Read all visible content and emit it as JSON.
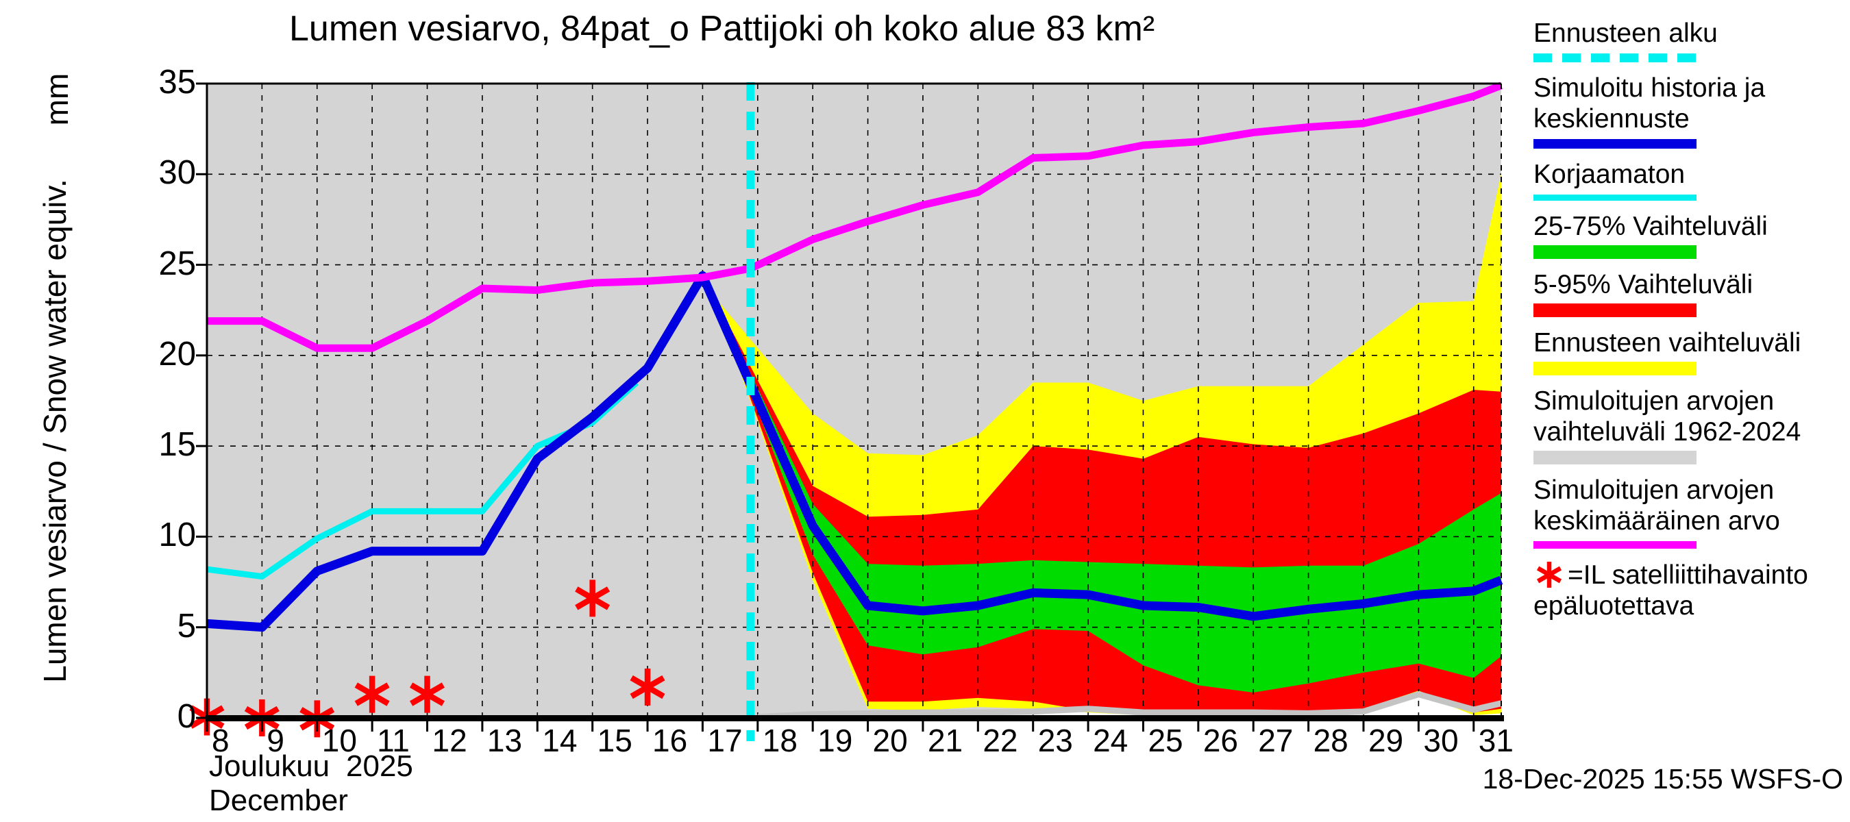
{
  "header": {
    "title": "Lumen vesiarvo, 84pat_o Pattijoki oh koko alue 83 km²"
  },
  "y_axis": {
    "name": "Lumen vesiarvo / Snow water equiv.",
    "unit": "mm",
    "tick_labels": [
      "0",
      "5",
      "10",
      "15",
      "20",
      "25",
      "30",
      "35"
    ]
  },
  "x_axis": {
    "month_fi": "Joulukuu",
    "year": "2025",
    "month_en": "December",
    "day_tick_labels": [
      "8",
      "9",
      "10",
      "11",
      "12",
      "13",
      "14",
      "15",
      "16",
      "17",
      "18",
      "19",
      "20",
      "21",
      "22",
      "23",
      "24",
      "25",
      "26",
      "27",
      "28",
      "29",
      "30",
      "31"
    ]
  },
  "footer": {
    "timestamp": "18-Dec-2025 15:55 WSFS-O"
  },
  "colors": {
    "median_blue": "#0000e0",
    "uncorrected_cyan": "#00efef",
    "mean_magenta": "#ff00ff",
    "band_green": "#00db00",
    "band_red": "#ff0000",
    "band_yellow": "#ffff00",
    "band_gray": "#d4d4d4",
    "gray_edge": "#c4c4c4",
    "obs_red": "#ff0000",
    "forecast_start_cyan": "#00efef",
    "axis_black": "#000000"
  },
  "legend": {
    "items": [
      {
        "key": "forecast-start",
        "lines": [
          "Ennusteen alku"
        ],
        "swatch": "dashed",
        "color": "#00efef"
      },
      {
        "key": "simulated-history-median",
        "lines": [
          "Simuloitu historia ja",
          "keskiennuste"
        ],
        "swatch": "thick-line",
        "color": "#0000e0"
      },
      {
        "key": "uncorrected",
        "lines": [
          "Korjaamaton"
        ],
        "swatch": "line",
        "color": "#00efef"
      },
      {
        "key": "range-25-75",
        "lines": [
          "25-75% Vaihteluväli"
        ],
        "swatch": "band",
        "color": "#00db00"
      },
      {
        "key": "range-5-95",
        "lines": [
          "5-95% Vaihteluväli"
        ],
        "swatch": "band",
        "color": "#ff0000"
      },
      {
        "key": "forecast-range",
        "lines": [
          "Ennusteen vaihteluväli"
        ],
        "swatch": "band",
        "color": "#ffff00"
      },
      {
        "key": "simulated-range-1962-2024",
        "lines": [
          "Simuloitujen arvojen",
          "vaihteluväli 1962-2024"
        ],
        "swatch": "band",
        "color": "#d4d4d4"
      },
      {
        "key": "simulated-mean",
        "lines": [
          "Simuloitujen arvojen",
          "keskimääräinen arvo"
        ],
        "swatch": "mline",
        "color": "#ff00ff"
      },
      {
        "key": "satellite-note",
        "lines": [
          "=IL satelliittihavainto",
          "epäluotettava"
        ],
        "swatch": "asterisk",
        "color": "#ff0000"
      }
    ]
  },
  "chart_data": {
    "type": "area",
    "title": "Lumen vesiarvo, 84pat_o Pattijoki oh koko alue 83 km²",
    "xlabel": "Joulukuu 2025 / December",
    "ylabel": "Lumen vesiarvo / Snow water equiv. (mm)",
    "xlim": [
      8,
      31.5
    ],
    "ylim": [
      0,
      35
    ],
    "grid": true,
    "legend_position": "right",
    "forecast_start_x": 17.87,
    "x_ticks": [
      8,
      9,
      10,
      11,
      12,
      13,
      14,
      15,
      16,
      17,
      18,
      19,
      20,
      21,
      22,
      23,
      24,
      25,
      26,
      27,
      28,
      29,
      30,
      31
    ],
    "y_ticks": [
      0,
      5,
      10,
      15,
      20,
      25,
      30,
      35
    ],
    "series": [
      {
        "name": "simulated_history_and_median_forecast",
        "color": "#0000e0",
        "width": 13,
        "points": [
          [
            8,
            5.2
          ],
          [
            9,
            5.0
          ],
          [
            10,
            8.1
          ],
          [
            11,
            9.2
          ],
          [
            12,
            9.2
          ],
          [
            13,
            9.2
          ],
          [
            14,
            14.3
          ],
          [
            15,
            16.6
          ],
          [
            16,
            19.3
          ],
          [
            17,
            24.4
          ],
          [
            17.87,
            18.4
          ],
          [
            19,
            10.6
          ],
          [
            20,
            6.2
          ],
          [
            21,
            5.9
          ],
          [
            22,
            6.2
          ],
          [
            23,
            6.9
          ],
          [
            24,
            6.8
          ],
          [
            25,
            6.2
          ],
          [
            26,
            6.1
          ],
          [
            27,
            5.6
          ],
          [
            28,
            6.0
          ],
          [
            29,
            6.3
          ],
          [
            30,
            6.8
          ],
          [
            31,
            7.0
          ],
          [
            31.5,
            7.6
          ]
        ]
      },
      {
        "name": "uncorrected_simulation",
        "color": "#00efef",
        "width": 9,
        "points": [
          [
            8,
            8.2
          ],
          [
            9,
            7.8
          ],
          [
            10,
            9.9
          ],
          [
            11,
            11.4
          ],
          [
            12,
            11.4
          ],
          [
            13,
            11.4
          ],
          [
            14,
            15.0
          ],
          [
            15,
            16.3
          ],
          [
            15.8,
            18.5
          ]
        ]
      },
      {
        "name": "long_term_simulated_mean_1962_2024",
        "color": "#ff00ff",
        "width": 11,
        "points": [
          [
            8,
            21.9
          ],
          [
            9,
            21.9
          ],
          [
            10,
            20.4
          ],
          [
            11,
            20.4
          ],
          [
            12,
            21.9
          ],
          [
            13,
            23.7
          ],
          [
            14,
            23.6
          ],
          [
            15,
            24.0
          ],
          [
            16,
            24.1
          ],
          [
            17,
            24.3
          ],
          [
            17.87,
            24.8
          ],
          [
            19,
            26.4
          ],
          [
            20,
            27.4
          ],
          [
            21,
            28.3
          ],
          [
            22,
            29.0
          ],
          [
            23,
            30.9
          ],
          [
            24,
            31.0
          ],
          [
            25,
            31.6
          ],
          [
            26,
            31.8
          ],
          [
            27,
            32.3
          ],
          [
            28,
            32.6
          ],
          [
            29,
            32.8
          ],
          [
            30,
            33.5
          ],
          [
            31,
            34.3
          ],
          [
            31.5,
            34.9
          ]
        ]
      }
    ],
    "simulated_range_1962_2024": {
      "color": "#d4d4d4",
      "edge_color": "#c4c4c4",
      "upper_clip": 35,
      "lower": [
        [
          8,
          0
        ],
        [
          18,
          0.05
        ],
        [
          19,
          0.2
        ],
        [
          20,
          0.25
        ],
        [
          21,
          0.3
        ],
        [
          22,
          0.3
        ],
        [
          23,
          0.35
        ],
        [
          24,
          0.5
        ],
        [
          25,
          0.3
        ],
        [
          26,
          0.3
        ],
        [
          27,
          0.3
        ],
        [
          28,
          0.25
        ],
        [
          29,
          0.35
        ],
        [
          30,
          1.3
        ],
        [
          31,
          0.45
        ],
        [
          31.5,
          0.8
        ]
      ]
    },
    "bands": [
      {
        "name": "forecast_full_range",
        "color": "#ffff00",
        "x": [
          17.2,
          19,
          20,
          21,
          22,
          23,
          24,
          25,
          26,
          27,
          28,
          29,
          30,
          31,
          31.5
        ],
        "top": [
          23.3,
          16.8,
          14.6,
          14.5,
          15.6,
          18.5,
          18.5,
          17.5,
          18.3,
          18.3,
          18.3,
          20.6,
          22.9,
          23.0,
          30.0
        ],
        "bottom": [
          23.3,
          7.6,
          0.5,
          0.4,
          0.6,
          0.5,
          0.3,
          0.15,
          0.1,
          0.05,
          0.1,
          0.3,
          1.35,
          0.15,
          0.25
        ]
      },
      {
        "name": "range_5_95",
        "color": "#ff0000",
        "x": [
          17.2,
          19,
          20,
          21,
          22,
          23,
          24,
          25,
          26,
          27,
          28,
          29,
          30,
          31,
          31.5
        ],
        "top": [
          23.3,
          12.8,
          11.1,
          11.2,
          11.5,
          15.0,
          14.8,
          14.3,
          15.5,
          15.1,
          14.9,
          15.7,
          16.8,
          18.1,
          18.0
        ],
        "bottom": [
          23.3,
          8.0,
          0.9,
          0.9,
          1.1,
          0.9,
          0.4,
          0.2,
          0.2,
          0.1,
          0.15,
          0.5,
          1.5,
          0.3,
          0.5
        ]
      },
      {
        "name": "range_25_75",
        "color": "#00db00",
        "x": [
          17.2,
          19,
          20,
          21,
          22,
          23,
          24,
          25,
          26,
          27,
          28,
          29,
          30,
          31,
          31.5
        ],
        "top": [
          23.3,
          11.8,
          8.5,
          8.4,
          8.5,
          8.7,
          8.6,
          8.5,
          8.4,
          8.3,
          8.4,
          8.4,
          9.6,
          11.5,
          12.4
        ],
        "bottom": [
          23.3,
          9.0,
          4.0,
          3.5,
          3.9,
          4.9,
          4.8,
          2.9,
          1.8,
          1.4,
          1.9,
          2.5,
          3.0,
          2.2,
          3.4
        ]
      }
    ],
    "satellite_observations": {
      "marker": "asterisk",
      "color": "#ff0000",
      "points": [
        [
          8,
          0.05
        ],
        [
          9,
          0.0
        ],
        [
          10,
          -0.05
        ],
        [
          11,
          1.3
        ],
        [
          12,
          1.3
        ],
        [
          15,
          6.6
        ],
        [
          16,
          1.7
        ]
      ]
    }
  }
}
